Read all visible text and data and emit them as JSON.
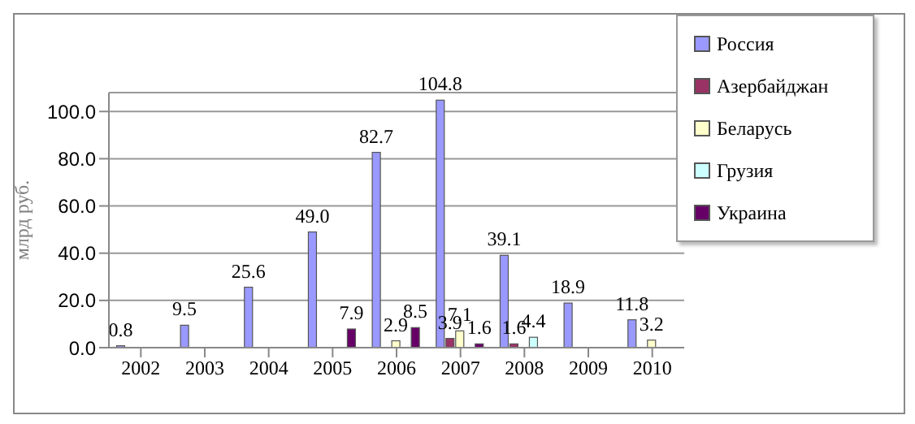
{
  "chart_data": {
    "type": "bar",
    "ylabel": "млрд руб.",
    "categories": [
      "2002",
      "2003",
      "2004",
      "2005",
      "2006",
      "2007",
      "2008",
      "2009",
      "2010"
    ],
    "series": [
      {
        "name": "Россия",
        "color": "#9999ff",
        "values": [
          0.8,
          9.5,
          25.6,
          49.0,
          82.7,
          104.8,
          39.1,
          18.9,
          11.8
        ],
        "value_labels": [
          "0.8",
          "9.5",
          "25.6",
          "49.0",
          "82.7",
          "104.8",
          "39.1",
          "18.9",
          "11.8"
        ]
      },
      {
        "name": "Азербайджан",
        "color": "#993366",
        "values": [
          null,
          null,
          null,
          null,
          null,
          3.9,
          1.6,
          null,
          null
        ],
        "value_labels": [
          null,
          null,
          null,
          null,
          null,
          "3.9",
          "1.6",
          null,
          null
        ]
      },
      {
        "name": "Беларусь",
        "color": "#ffffcc",
        "values": [
          null,
          null,
          null,
          null,
          2.9,
          7.1,
          null,
          null,
          3.2
        ],
        "value_labels": [
          null,
          null,
          null,
          null,
          "2.9",
          "7.1",
          null,
          null,
          "3.2"
        ]
      },
      {
        "name": "Грузия",
        "color": "#ccffff",
        "values": [
          null,
          null,
          null,
          null,
          null,
          null,
          4.4,
          null,
          null
        ],
        "value_labels": [
          null,
          null,
          null,
          null,
          null,
          null,
          "4.4",
          null,
          null
        ]
      },
      {
        "name": "Украина",
        "color": "#660066",
        "values": [
          null,
          null,
          null,
          7.9,
          8.5,
          1.6,
          null,
          null,
          null
        ],
        "value_labels": [
          null,
          null,
          null,
          "7.9",
          "8.5",
          "1.6",
          null,
          null,
          null
        ]
      }
    ],
    "ylim": [
      0,
      108
    ],
    "yticks": [
      {
        "value": 0,
        "label": "0.0"
      },
      {
        "value": 20,
        "label": "20.0"
      },
      {
        "value": 40,
        "label": "40.0"
      },
      {
        "value": 60,
        "label": "60.0"
      },
      {
        "value": 80,
        "label": "80.0"
      },
      {
        "value": 100,
        "label": "100.0"
      }
    ],
    "grid": "y",
    "legend": "top right"
  }
}
